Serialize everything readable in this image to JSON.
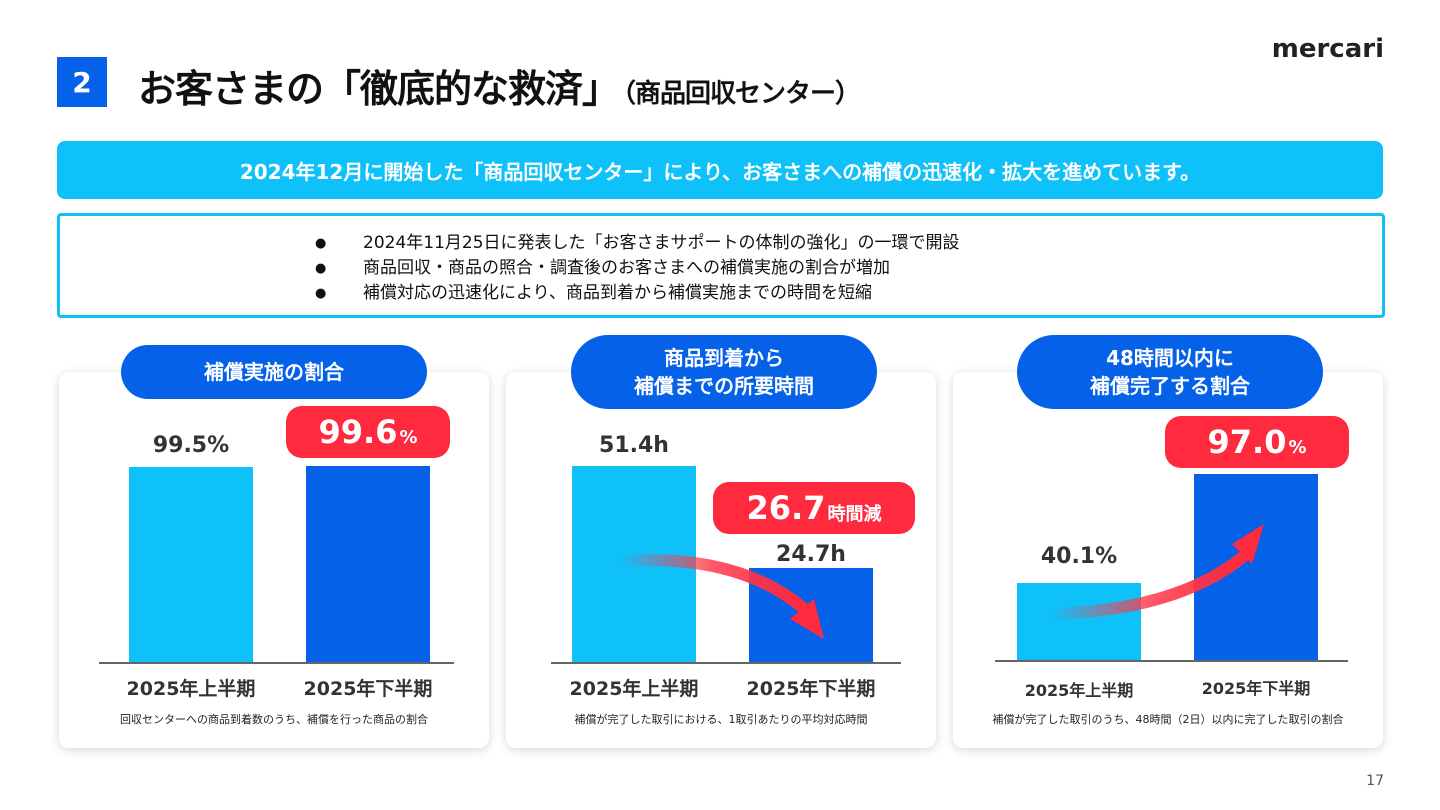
{
  "header": {
    "section_number": "2",
    "title": "お客さまの「徹底的な救済」",
    "title_sub": "（商品回収センター）",
    "logo": "mercari"
  },
  "banner": "2024年12月に開始した「商品回収センター」により、お客さまへの補償の迅速化・拡大を進めています。",
  "points": [
    "2024年11月25日に発表した「お客さまサポートの体制の強化」の一環で開設",
    "商品回収・商品の照合・調査後のお客さまへの補償実施の割合が増加",
    "補償対応の迅速化により、商品到着から補償実施までの時間を短縮"
  ],
  "bullet": "●",
  "colors": {
    "light_bar": "#0ec1f8",
    "dark_bar": "#0561e8",
    "badge": "#ff2a3d",
    "pill": "#0561e8"
  },
  "chart_data": [
    {
      "type": "bar",
      "title": "補償実施の割合",
      "categories": [
        "2025年上半期",
        "2025年下半期"
      ],
      "values": [
        99.5,
        99.6
      ],
      "labels": [
        "99.5%",
        "99.6"
      ],
      "highlight_unit": "%",
      "note": "回収センターへの商品到着数のうち、補償を行った商品の割合"
    },
    {
      "type": "bar",
      "title_line1": "商品到着から",
      "title_line2": "補償までの所要時間",
      "categories": [
        "2025年上半期",
        "2025年下半期"
      ],
      "values": [
        51.4,
        24.7
      ],
      "labels": [
        "51.4h",
        "24.7h"
      ],
      "callout_value": "26.7",
      "callout_unit": "時間減",
      "note": "補償が完了した取引における、1取引あたりの平均対応時間"
    },
    {
      "type": "bar",
      "title_line1": "48時間以内に",
      "title_line2": "補償完了する割合",
      "categories": [
        "2025年上半期",
        "2025年下半期"
      ],
      "values": [
        40.1,
        97.0
      ],
      "labels": [
        "40.1%",
        "97.0"
      ],
      "highlight_unit": "%",
      "note": "補償が完了した取引のうち、48時間（2日）以内に完了した取引の割合"
    }
  ],
  "page_number": "17"
}
